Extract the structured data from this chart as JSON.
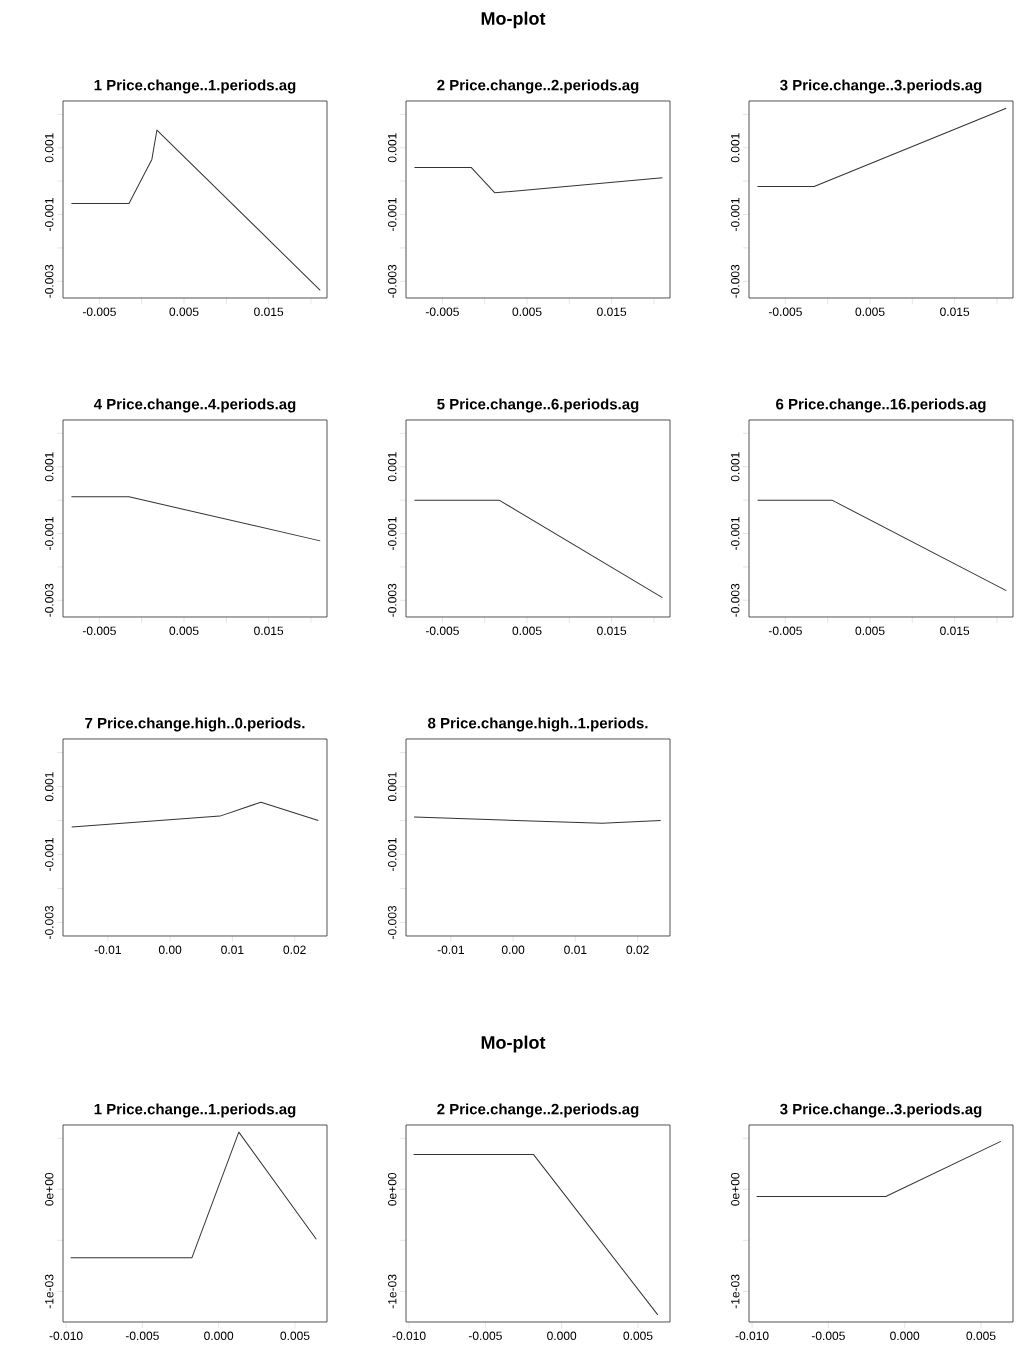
{
  "chart_data": [
    {
      "type": "line",
      "title": "1 Price.change..1.periods.ag",
      "annotations": [
        "Mo-plot"
      ],
      "xlim": [
        -0.0093,
        0.0219
      ],
      "ylim": [
        -0.0035,
        0.0024
      ],
      "xticks": [
        -0.005,
        {
          "value": 0,
          "label": null
        },
        0.005,
        {
          "value": 0.01,
          "label": null
        },
        0.015,
        {
          "value": 0.02,
          "label": null
        }
      ],
      "yticks": [
        {
          "value": 0.002,
          "label": null
        },
        0.001,
        {
          "value": 0,
          "label": null
        },
        -0.001,
        {
          "value": -0.002,
          "label": null
        },
        -0.003
      ],
      "x": [
        -0.0083,
        -0.0015,
        0.0012,
        0.0018,
        0.0211
      ],
      "series": [
        {
          "color": "#333333",
          "values": [
            -0.00067,
            -0.00067,
            0.00065,
            0.00153,
            -0.00327
          ]
        }
      ]
    },
    {
      "type": "line",
      "title": "2 Price.change..2.periods.ag",
      "xlim": [
        -0.0093,
        0.0219
      ],
      "ylim": [
        -0.0035,
        0.0024
      ],
      "xticks": [
        -0.005,
        {
          "value": 0,
          "label": null
        },
        0.005,
        {
          "value": 0.01,
          "label": null
        },
        0.015,
        {
          "value": 0.02,
          "label": null
        }
      ],
      "yticks": [
        {
          "value": 0.002,
          "label": null
        },
        0.001,
        {
          "value": 0,
          "label": null
        },
        -0.001,
        {
          "value": -0.002,
          "label": null
        },
        -0.003
      ],
      "x": [
        -0.0083,
        -0.0016,
        0.0012,
        0.021
      ],
      "series": [
        {
          "color": "#333333",
          "values": [
            0.00041,
            0.00041,
            -0.00035,
            0.0001
          ]
        }
      ]
    },
    {
      "type": "line",
      "title": "3 Price.change..3.periods.ag",
      "xlim": [
        -0.0093,
        0.0219
      ],
      "ylim": [
        -0.0035,
        0.0024
      ],
      "xticks": [
        -0.005,
        {
          "value": 0,
          "label": null
        },
        0.005,
        {
          "value": 0.01,
          "label": null
        },
        0.015,
        {
          "value": 0.02,
          "label": null
        }
      ],
      "yticks": [
        {
          "value": 0.002,
          "label": null
        },
        0.001,
        {
          "value": 0,
          "label": null
        },
        -0.001,
        {
          "value": -0.002,
          "label": null
        },
        -0.003
      ],
      "x": [
        -0.0083,
        -0.0016,
        0.0211
      ],
      "series": [
        {
          "color": "#333333",
          "values": [
            -0.00016,
            -0.00016,
            0.00218
          ]
        }
      ]
    },
    {
      "type": "line",
      "title": "4 Price.change..4.periods.ag",
      "xlim": [
        -0.0093,
        0.0219
      ],
      "ylim": [
        -0.0035,
        0.0024
      ],
      "xticks": [
        -0.005,
        {
          "value": 0,
          "label": null
        },
        0.005,
        {
          "value": 0.01,
          "label": null
        },
        0.015,
        {
          "value": 0.02,
          "label": null
        }
      ],
      "yticks": [
        {
          "value": 0.002,
          "label": null
        },
        0.001,
        {
          "value": 0,
          "label": null
        },
        -0.001,
        {
          "value": -0.002,
          "label": null
        },
        -0.003
      ],
      "x": [
        -0.0083,
        -0.0015,
        0.0211
      ],
      "series": [
        {
          "color": "#333333",
          "values": [
            0.0001,
            0.0001,
            -0.00122
          ]
        }
      ]
    },
    {
      "type": "line",
      "title": "5 Price.change..6.periods.ag",
      "xlim": [
        -0.0093,
        0.0219
      ],
      "ylim": [
        -0.0035,
        0.0024
      ],
      "xticks": [
        -0.005,
        {
          "value": 0,
          "label": null
        },
        0.005,
        {
          "value": 0.01,
          "label": null
        },
        0.015,
        {
          "value": 0.02,
          "label": null
        }
      ],
      "yticks": [
        {
          "value": 0.002,
          "label": null
        },
        0.001,
        {
          "value": 0,
          "label": null
        },
        -0.001,
        {
          "value": -0.002,
          "label": null
        },
        -0.003
      ],
      "x": [
        -0.0083,
        0.0017,
        0.021
      ],
      "series": [
        {
          "color": "#333333",
          "values": [
            0.0,
            0.0,
            -0.00292
          ]
        }
      ]
    },
    {
      "type": "line",
      "title": "6 Price.change..16.periods.ag",
      "xlim": [
        -0.0093,
        0.0219
      ],
      "ylim": [
        -0.0035,
        0.0024
      ],
      "xticks": [
        -0.005,
        {
          "value": 0,
          "label": null
        },
        0.005,
        {
          "value": 0.01,
          "label": null
        },
        0.015,
        {
          "value": 0.02,
          "label": null
        }
      ],
      "yticks": [
        {
          "value": 0.002,
          "label": null
        },
        0.001,
        {
          "value": 0,
          "label": null
        },
        -0.001,
        {
          "value": -0.002,
          "label": null
        },
        -0.003
      ],
      "x": [
        -0.0083,
        0.0005,
        0.0211
      ],
      "series": [
        {
          "color": "#333333",
          "values": [
            0.0,
            0.0,
            -0.00271
          ]
        }
      ]
    },
    {
      "type": "line",
      "title": "7 Price.change.high..0.periods.",
      "xlim": [
        -0.0172,
        0.0252
      ],
      "ylim": [
        -0.0034,
        0.0024
      ],
      "xticks": [
        -0.01,
        {
          "value": 0,
          "label": "0.00"
        },
        0.01,
        0.02
      ],
      "yticks": [
        {
          "value": 0.002,
          "label": null
        },
        0.001,
        {
          "value": 0,
          "label": null
        },
        -0.001,
        {
          "value": -0.002,
          "label": null
        },
        -0.003
      ],
      "x": [
        -0.0158,
        0.008,
        0.0146,
        0.0238
      ],
      "series": [
        {
          "color": "#333333",
          "values": [
            -0.00019,
            0.00013,
            0.00054,
            0.0
          ]
        }
      ]
    },
    {
      "type": "line",
      "title": "8 Price.change.high..1.periods.",
      "xlim": [
        -0.0172,
        0.0252
      ],
      "ylim": [
        -0.0034,
        0.0024
      ],
      "xticks": [
        -0.01,
        {
          "value": 0,
          "label": "0.00"
        },
        0.01,
        0.02
      ],
      "yticks": [
        {
          "value": 0.002,
          "label": null
        },
        0.001,
        {
          "value": 0,
          "label": null
        },
        -0.001,
        {
          "value": -0.002,
          "label": null
        },
        -0.003
      ],
      "x": [
        -0.0159,
        0.0143,
        0.0237
      ],
      "series": [
        {
          "color": "#333333",
          "values": [
            0.0001,
            -8e-05,
            0.0
          ]
        }
      ]
    },
    {
      "type": "line",
      "title": "1 Price.change..1.periods.ag",
      "annotations": [
        "Mo-plot"
      ],
      "xlim": [
        -0.0102,
        0.0071
      ],
      "ylim": [
        -0.0013,
        0.00063
      ],
      "xticks": [
        {
          "value": -0.01,
          "label": "-0.010"
        },
        -0.005,
        {
          "value": 0,
          "label": "0.000"
        },
        0.005
      ],
      "yticks": [
        {
          "value": 0.0005,
          "label": null
        },
        {
          "value": 0,
          "label": "0e+00"
        },
        {
          "value": -0.0005,
          "label": null
        },
        {
          "value": -0.001,
          "label": "-1e-03"
        }
      ],
      "x": [
        -0.0097,
        -0.00175,
        0.00132,
        0.0064
      ],
      "series": [
        {
          "color": "#333333",
          "values": [
            -0.00067,
            -0.00067,
            0.00056,
            -0.00049
          ]
        }
      ]
    },
    {
      "type": "line",
      "title": "2 Price.change..2.periods.ag",
      "xlim": [
        -0.0102,
        0.0071
      ],
      "ylim": [
        -0.0013,
        0.00063
      ],
      "xticks": [
        {
          "value": -0.01,
          "label": "-0.010"
        },
        -0.005,
        {
          "value": 0,
          "label": "0.000"
        },
        0.005
      ],
      "yticks": [
        {
          "value": 0.0005,
          "label": null
        },
        {
          "value": 0,
          "label": "0e+00"
        },
        {
          "value": -0.0005,
          "label": null
        },
        {
          "value": -0.001,
          "label": "-1e-03"
        }
      ],
      "x": [
        -0.0097,
        -0.00184,
        0.0063
      ],
      "series": [
        {
          "color": "#333333",
          "values": [
            0.00034,
            0.00034,
            -0.00123
          ]
        }
      ]
    },
    {
      "type": "line",
      "title": "3 Price.change..3.periods.ag",
      "xlim": [
        -0.0102,
        0.0071
      ],
      "ylim": [
        -0.0013,
        0.00063
      ],
      "xticks": [
        {
          "value": -0.01,
          "label": "-0.010"
        },
        -0.005,
        {
          "value": 0,
          "label": "0.000"
        },
        0.005
      ],
      "yticks": [
        {
          "value": 0.0005,
          "label": null
        },
        {
          "value": 0,
          "label": "0e+00"
        },
        {
          "value": -0.0005,
          "label": null
        },
        {
          "value": -0.001,
          "label": "-1e-03"
        }
      ],
      "x": [
        -0.0097,
        -0.00124,
        0.0063
      ],
      "series": [
        {
          "color": "#333333",
          "values": [
            -7e-05,
            -7e-05,
            0.00047
          ]
        }
      ]
    }
  ]
}
